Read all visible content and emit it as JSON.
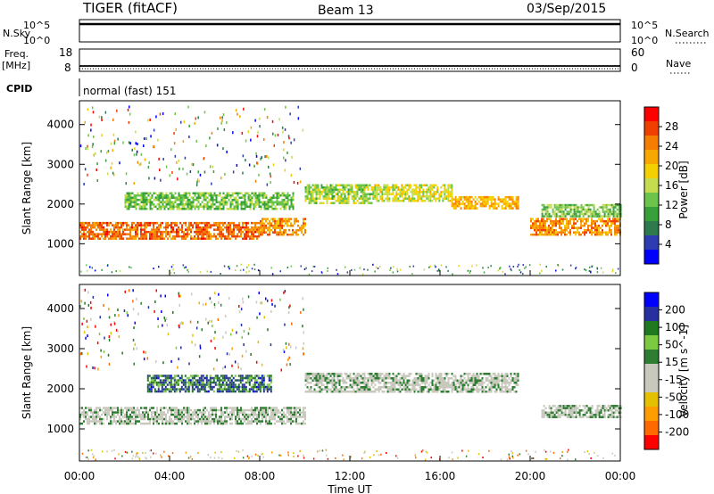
{
  "header": {
    "station": "TIGER (fitACF)",
    "beam": "Beam 13",
    "date": "03/Sep/2015"
  },
  "nsky": {
    "left_label": "N.Sky",
    "left_ticks": [
      "10^5",
      "10^0"
    ],
    "right_ticks": [
      "10^5",
      "10^0"
    ],
    "right_label": "N.Search"
  },
  "freq": {
    "left_label": "Freq.",
    "unit_label": "[MHz]",
    "left_ticks": [
      "18",
      "8"
    ],
    "right_ticks": [
      "60",
      "0"
    ],
    "right_label": "Nave"
  },
  "cpid": {
    "label": "CPID",
    "text": "normal (fast) 151"
  },
  "xaxis": {
    "label": "Time UT",
    "ticks": [
      "00:00",
      "04:00",
      "08:00",
      "12:00",
      "16:00",
      "20:00",
      "00:00"
    ]
  },
  "colors": {
    "power": [
      "#0000ff",
      "#2d3cb0",
      "#2f7a4d",
      "#37a03a",
      "#6cc44a",
      "#c6dc4f",
      "#f5d000",
      "#f7a800",
      "#f57d00",
      "#f04000",
      "#ff0000"
    ],
    "velocity": [
      "#ff0000",
      "#ff6a00",
      "#ff9d00",
      "#e3c100",
      "#c8c8bc",
      "#c8c8bc",
      "#2e7d32",
      "#7cc942",
      "#1f7a1f",
      "#2730a0",
      "#0000ff"
    ]
  },
  "chart_data": [
    {
      "type": "heatmap",
      "title": "Power",
      "ylabel": "Slant Range [km]",
      "yticks": [
        "1000",
        "2000",
        "3000",
        "4000"
      ],
      "ylim": [
        200,
        4600
      ],
      "xlabel": "Time UT",
      "xlim": [
        0,
        24
      ],
      "colorbar": {
        "label": "Power [dB]",
        "ticks": [
          "28",
          "24",
          "20",
          "16",
          "12",
          "8",
          "4"
        ],
        "range": [
          0,
          30
        ]
      },
      "bands": [
        {
          "t_start": 0.0,
          "t_end": 8.0,
          "r_low": 1150,
          "r_high": 1550,
          "value": 24
        },
        {
          "t_start": 8.0,
          "t_end": 10.0,
          "r_low": 1250,
          "r_high": 1650,
          "value": 22
        },
        {
          "t_start": 2.0,
          "t_end": 9.5,
          "r_low": 1900,
          "r_high": 2300,
          "value": 12
        },
        {
          "t_start": 10.0,
          "t_end": 13.0,
          "r_low": 2000,
          "r_high": 2500,
          "value": 14
        },
        {
          "t_start": 13.0,
          "t_end": 16.5,
          "r_low": 2100,
          "r_high": 2500,
          "value": 16
        },
        {
          "t_start": 16.5,
          "t_end": 19.5,
          "r_low": 1900,
          "r_high": 2200,
          "value": 20
        },
        {
          "t_start": 20.0,
          "t_end": 24.0,
          "r_low": 1250,
          "r_high": 1650,
          "value": 22
        },
        {
          "t_start": 20.5,
          "t_end": 24.0,
          "r_low": 1700,
          "r_high": 2000,
          "value": 12
        }
      ]
    },
    {
      "type": "heatmap",
      "title": "Velocity",
      "ylabel": "Slant Range [km]",
      "yticks": [
        "1000",
        "2000",
        "3000",
        "4000"
      ],
      "ylim": [
        200,
        4600
      ],
      "xlabel": "Time UT",
      "xlim": [
        0,
        24
      ],
      "colorbar": {
        "label": "Velocity [m s^-1]",
        "ticks": [
          "200",
          "100",
          "50",
          "15",
          "-15",
          "-50",
          "-100",
          "-200"
        ],
        "range": [
          -250,
          250
        ]
      },
      "bands": [
        {
          "t_start": 0.0,
          "t_end": 10.0,
          "r_low": 1150,
          "r_high": 1550,
          "value": 0
        },
        {
          "t_start": 10.0,
          "t_end": 19.5,
          "r_low": 1950,
          "r_high": 2400,
          "value": 0
        },
        {
          "t_start": 3.0,
          "t_end": 8.5,
          "r_low": 1950,
          "r_high": 2350,
          "value": 150
        },
        {
          "t_start": 20.5,
          "t_end": 24.0,
          "r_low": 1300,
          "r_high": 1600,
          "value": 0
        }
      ]
    }
  ]
}
